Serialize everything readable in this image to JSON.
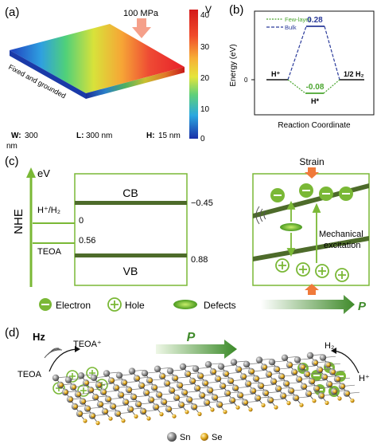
{
  "panel_a": {
    "label": "(a)",
    "pressure": "100 MPa",
    "colorbar_unit": "V",
    "colorbar_ticks": [
      "40",
      "30",
      "20",
      "10",
      "0"
    ],
    "edge_label": "Fixed and grounded",
    "dims": {
      "w_key": "W:",
      "w_val": "300",
      "w_unit": "nm",
      "l_key": "L:",
      "l_val": "300 nm",
      "h_key": "H:",
      "h_val": "15 nm"
    }
  },
  "panel_b": {
    "label": "(b)",
    "ylabel": "Energy (eV)",
    "xlabel": "Reaction Coordinate",
    "legend_few": "Few-layer",
    "legend_bulk": "Bulk",
    "bulk_value": "0.28",
    "few_value": "-0.08",
    "left_state": "H⁺",
    "mid_state": "H*",
    "right_state": "1/2 H₂",
    "ytick_zero": "0",
    "colors": {
      "few": "#4aa52e",
      "bulk": "#2a3a9a"
    }
  },
  "panel_c": {
    "label": "(c)",
    "axis_unit": "eV",
    "axis_name": "NHE",
    "cb": "CB",
    "vb": "VB",
    "cb_value": "−0.45",
    "vb_value": "0.88",
    "hplus_label": "H⁺/H₂",
    "hplus_value": "0",
    "teoa_label": "TEOA",
    "teoa_value": "0.56",
    "strain": "Strain",
    "mech_line1": "Mechanical",
    "mech_line2": "excitation",
    "legend": {
      "electron": "Electron",
      "hole": "Hole",
      "defects": "Defects",
      "p": "P"
    },
    "colors": {
      "green": "#7ab836",
      "dark_green": "#4d6b2a",
      "arrow": "#f07a3a"
    }
  },
  "panel_d": {
    "label": "(d)",
    "hz": "Hz",
    "teoa_plus": "TEOA⁺",
    "teoa": "TEOA",
    "p": "P",
    "h2": "H₂",
    "hplus": "H⁺",
    "legend_sn": "Sn",
    "legend_se": "Se"
  }
}
